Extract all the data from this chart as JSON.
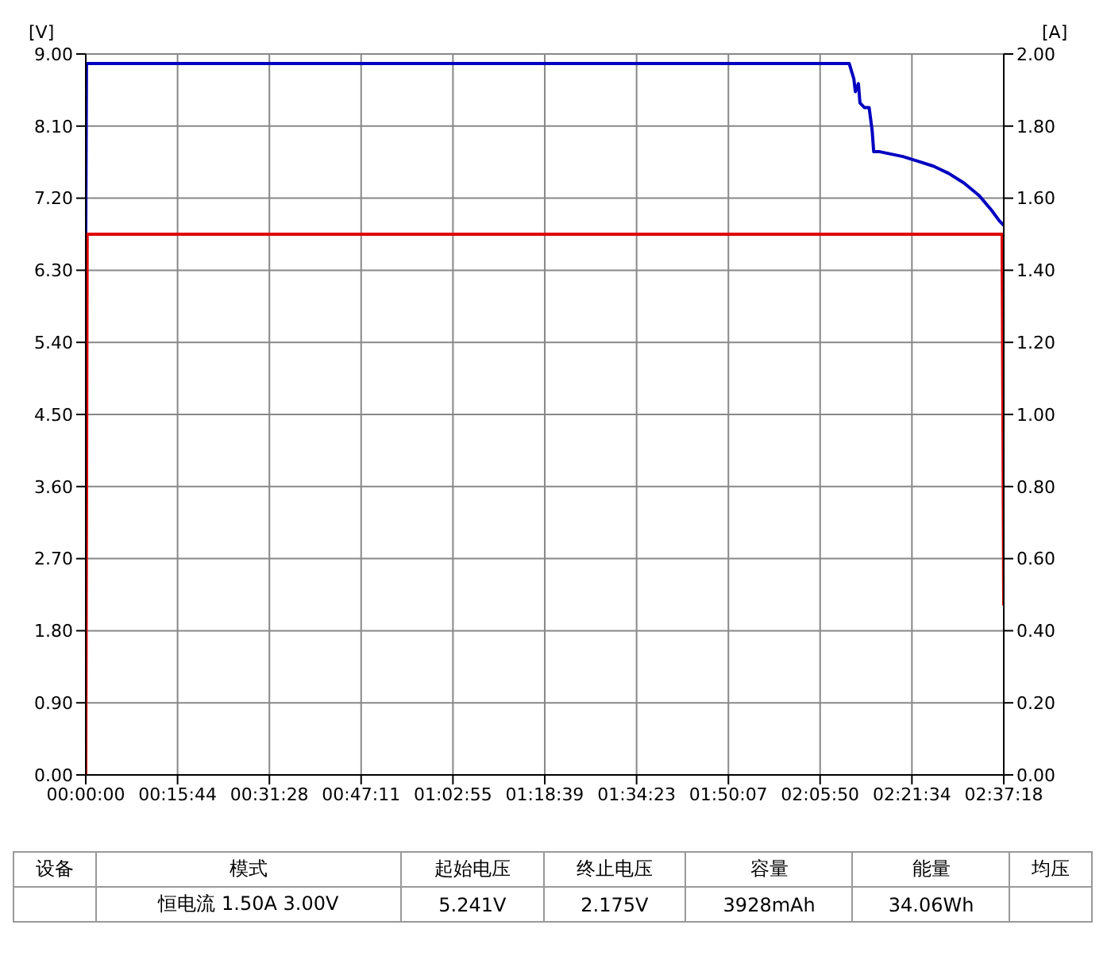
{
  "chart_data": {
    "type": "line",
    "ylabel": "[V]",
    "y2label": "[A]",
    "xlim": [
      0,
      2.6217
    ],
    "xticks": [
      {
        "value": 0,
        "label": "00:00:00"
      },
      {
        "value": 0.2622,
        "label": "00:15:44"
      },
      {
        "value": 0.5244,
        "label": "00:31:28"
      },
      {
        "value": 0.7864,
        "label": "00:47:11"
      },
      {
        "value": 1.0486,
        "label": "01:02:55"
      },
      {
        "value": 1.3108,
        "label": "01:18:39"
      },
      {
        "value": 1.5731,
        "label": "01:34:23"
      },
      {
        "value": 1.8353,
        "label": "01:50:07"
      },
      {
        "value": 2.0972,
        "label": "02:05:50"
      },
      {
        "value": 2.3594,
        "label": "02:21:34"
      },
      {
        "value": 2.6217,
        "label": "02:37:18"
      }
    ],
    "ylim": [
      0,
      9
    ],
    "yticks": [
      {
        "value": 0,
        "label": "0.00"
      },
      {
        "value": 0.9,
        "label": "0.90"
      },
      {
        "value": 1.8,
        "label": "1.80"
      },
      {
        "value": 2.7,
        "label": "2.70"
      },
      {
        "value": 3.6,
        "label": "3.60"
      },
      {
        "value": 4.5,
        "label": "4.50"
      },
      {
        "value": 5.4,
        "label": "5.40"
      },
      {
        "value": 6.3,
        "label": "6.30"
      },
      {
        "value": 7.2,
        "label": "7.20"
      },
      {
        "value": 8.1,
        "label": "8.10"
      },
      {
        "value": 9,
        "label": "9.00"
      }
    ],
    "y2lim": [
      0,
      2
    ],
    "y2ticks": [
      {
        "value": 0,
        "label": "0.00"
      },
      {
        "value": 0.2,
        "label": "0.20"
      },
      {
        "value": 0.4,
        "label": "0.40"
      },
      {
        "value": 0.6,
        "label": "0.60"
      },
      {
        "value": 0.8,
        "label": "0.80"
      },
      {
        "value": 1,
        "label": "1.00"
      },
      {
        "value": 1.2,
        "label": "1.20"
      },
      {
        "value": 1.4,
        "label": "1.40"
      },
      {
        "value": 1.6,
        "label": "1.60"
      },
      {
        "value": 1.8,
        "label": "1.80"
      },
      {
        "value": 2,
        "label": "2.00"
      }
    ],
    "grid": true,
    "legend": false,
    "marker": "none",
    "line_style": "solid",
    "series": [
      {
        "color": "#0000c0",
        "x": [
          0,
          0.002,
          2.1804,
          2.1935,
          2.1979,
          2.2066,
          2.211,
          2.2241,
          2.2372,
          2.2459,
          2.2503,
          2.2678,
          2.2896,
          2.3333,
          2.3771,
          2.4207,
          2.4644,
          2.5081,
          2.5518,
          2.5868,
          2.6086,
          2.6217
        ],
        "values": [
          6.76,
          8.88,
          8.88,
          8.69,
          8.53,
          8.63,
          8.39,
          8.33,
          8.33,
          8.04,
          7.78,
          7.78,
          7.76,
          7.72,
          7.66,
          7.6,
          7.51,
          7.39,
          7.23,
          7.05,
          6.92,
          6.86
        ]
      },
      {
        "color": "#e00000",
        "axis": "y2",
        "x": [
          0,
          0.004,
          2.617,
          2.6217
        ],
        "values": [
          0,
          1.5,
          1.5,
          0.47
        ]
      }
    ],
    "annotations": [
      "设备",
      "模式",
      "起始电压",
      "终止电压",
      "容量",
      "能量",
      "均压",
      "恒电流  1.50A  3.00V",
      "5.241V",
      "2.175V",
      "3928mAh",
      "34.06Wh"
    ]
  }
}
